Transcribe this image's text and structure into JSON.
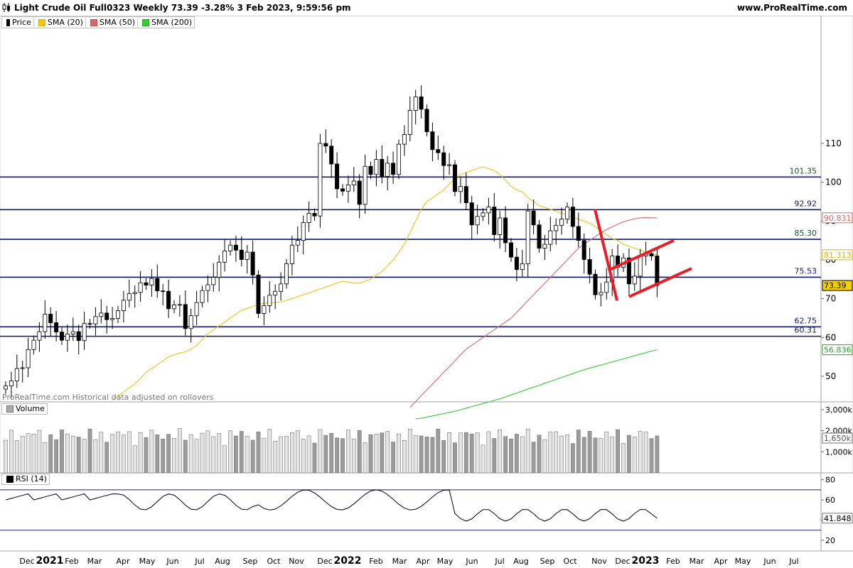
{
  "header": {
    "title": "Light Crude Oil Full0323 Weekly 73.39 -3.28% 3 Feb 2023, 9:59:56 pm",
    "site": "www.ProRealTime.com"
  },
  "legend": {
    "price": "Price",
    "sma20": "SMA (20)",
    "sma50": "SMA (50)",
    "sma200": "SMA (200)"
  },
  "watermark": "ProRealTime.com Historical data adjusted on rollovers",
  "volume_panel": {
    "label": "Volume"
  },
  "rsi_panel": {
    "label": "RSI (14)"
  },
  "colors": {
    "up": "#ffffff",
    "down": "#000000",
    "sma20": "#f0c419",
    "sma50": "#d9686a",
    "sma200": "#33cc33",
    "hline": "#0d1a6e",
    "trend": "#ee1c25"
  },
  "chart_data": {
    "type": "candlestick",
    "timeframe": "Weekly",
    "instrument": "Light Crude Oil Full0323",
    "last": "73.39",
    "change": "-3.28%",
    "price_axis": {
      "ticks": [
        50,
        60,
        70,
        80,
        90,
        100,
        110
      ]
    },
    "month_labels": [
      "Dec",
      "2021",
      "Feb",
      "Mar",
      "Apr",
      "May",
      "Jun",
      "Jul",
      "Aug",
      "Sep",
      "Oct",
      "Nov",
      "Dec",
      "2022",
      "Feb",
      "Mar",
      "Apr",
      "May",
      "Jun",
      "Jul",
      "Aug",
      "Sep",
      "Oct",
      "Nov",
      "Dec",
      "2023",
      "Feb",
      "Mar",
      "Apr",
      "May",
      "Jun",
      "Jul"
    ],
    "levels": [
      {
        "value": 101.35,
        "label": "101.35",
        "color": "#0b5d1e"
      },
      {
        "value": 92.92,
        "label": "92.92",
        "color": "#0d1a6e"
      },
      {
        "value": 85.3,
        "label": "85.30",
        "color": "#0b5d1e"
      },
      {
        "value": 75.53,
        "label": "75.53",
        "color": "#0d1a6e"
      },
      {
        "value": 62.75,
        "label": "62.75",
        "color": "#0d1a6e"
      },
      {
        "value": 60.31,
        "label": "60.31",
        "color": "#0d1a6e"
      }
    ],
    "indicator_tags": [
      {
        "label": "90.831",
        "value": 90.831,
        "color": "#d9686a"
      },
      {
        "label": "81.313",
        "value": 81.313,
        "color": "#e0b400"
      },
      {
        "label": "73.39",
        "value": 73.39,
        "color": "#000000",
        "bg": "#f5d000"
      },
      {
        "label": "56.836",
        "value": 56.836,
        "color": "#22aa22"
      }
    ],
    "closes": [
      47.5,
      48.8,
      52.0,
      52.2,
      56.9,
      59.3,
      61.5,
      66.0,
      63.8,
      61.4,
      59.3,
      60.9,
      61.5,
      59.2,
      63.6,
      63.5,
      65.4,
      66.3,
      64.6,
      64.9,
      66.9,
      69.6,
      71.3,
      71.6,
      74.1,
      73.5,
      75.2,
      72.0,
      71.9,
      67.4,
      68.4,
      68.5,
      62.3,
      65.6,
      69.0,
      72.1,
      73.6,
      75.5,
      79.4,
      82.3,
      83.8,
      82.5,
      80.1,
      82.0,
      76.1,
      66.2,
      68.2,
      70.9,
      71.9,
      73.8,
      79.0,
      83.8,
      85.0,
      89.6,
      92.0,
      91.3,
      110.0,
      109.3,
      104.7,
      98.3,
      97.7,
      99.3,
      100.3,
      94.3,
      104.1,
      102.0,
      105.9,
      101.5,
      104.9,
      102.0,
      109.8,
      112.3,
      118.5,
      122.0,
      118.8,
      113.0,
      108.4,
      107.6,
      104.3,
      104.5,
      97.6,
      98.9,
      94.7,
      89.0,
      91.2,
      92.1,
      93.6,
      86.5,
      90.8,
      84.4,
      80.7,
      77.5,
      79.0,
      92.6,
      89.0,
      83.0,
      84.0,
      87.5,
      88.9,
      90.5,
      93.6,
      88.6,
      85.0,
      80.1,
      76.3,
      71.0,
      71.6,
      74.3,
      81.0,
      78.1,
      80.5,
      73.8,
      75.8,
      81.0,
      81.6,
      81.0,
      73.39
    ],
    "sma20": [
      44,
      45,
      46,
      47,
      48,
      49.5,
      51,
      52,
      53,
      54,
      55,
      55.5,
      56,
      56.3,
      57,
      58,
      59.5,
      61,
      62,
      63,
      64,
      65,
      66,
      67,
      67.5,
      68,
      68.5,
      68.8,
      69,
      69,
      69.2,
      69.5,
      70,
      70.5,
      71,
      71.5,
      72,
      72.5,
      73,
      73.5,
      74,
      74.5,
      74.3,
      74,
      74,
      74.5,
      75,
      76,
      77,
      78.5,
      80,
      82,
      84,
      87,
      90,
      93,
      95,
      96,
      97,
      98,
      99.5,
      101,
      102,
      102.5,
      103,
      103.5,
      104,
      103.5,
      103,
      102,
      100.5,
      99,
      98,
      97.5,
      96,
      95,
      94,
      93.5,
      93,
      92.5,
      92,
      91.5,
      91,
      90.5,
      90,
      89.5,
      88.5,
      87.5,
      86.5,
      85.5,
      85,
      84,
      83.5,
      83,
      82.5,
      82,
      81.5,
      81.3
    ],
    "sma50": [
      null,
      null,
      null,
      null,
      null,
      null,
      null,
      null,
      null,
      null,
      null,
      null,
      null,
      null,
      null,
      null,
      null,
      null,
      null,
      null,
      null,
      null,
      null,
      null,
      null,
      null,
      null,
      null,
      null,
      null,
      42,
      43.5,
      45,
      46.5,
      48,
      49.5,
      51,
      52.5,
      54,
      55.5,
      57,
      58,
      59,
      60,
      61,
      62,
      63,
      64,
      65,
      66.5,
      68,
      69.5,
      71,
      72.5,
      74,
      75.5,
      77,
      78.5,
      80,
      81.5,
      83,
      84,
      85,
      86,
      87,
      87.8,
      88.5,
      89.2,
      89.8,
      90.2,
      90.6,
      90.8,
      90.9,
      90.85,
      90.831
    ],
    "sma200": [
      39,
      39.2,
      39.5,
      39.8,
      40.1,
      40.4,
      40.7,
      41,
      41.4,
      41.8,
      42.2,
      42.6,
      43,
      43.4,
      43.8,
      44.2,
      44.7,
      45.2,
      45.7,
      46.2,
      46.7,
      47.2,
      47.7,
      48.2,
      48.7,
      49.2,
      49.7,
      50.2,
      50.7,
      51.2,
      51.7,
      52.1,
      52.5,
      52.9,
      53.3,
      53.7,
      54.1,
      54.5,
      54.9,
      55.3,
      55.7,
      56.1,
      56.5,
      56.836
    ],
    "volume_axis": {
      "ticks": [
        "3,000k",
        "2,000k",
        "1,000k"
      ],
      "last_tag": "1,650k"
    },
    "rsi": {
      "period": 14,
      "last": "41.848",
      "ticks": [
        80,
        60,
        40,
        20
      ],
      "upper": 70,
      "lower": 30
    }
  }
}
